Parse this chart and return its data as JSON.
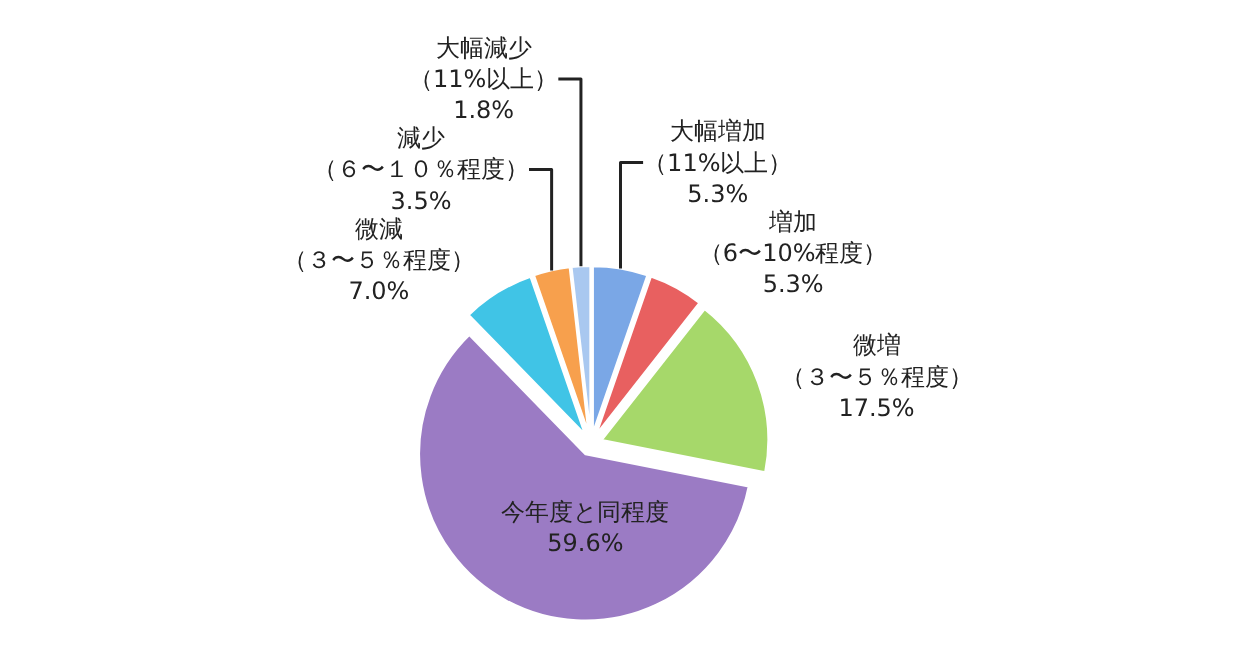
{
  "chart_data": {
    "type": "pie",
    "categories": [
      "大幅増加（11%以上）",
      "増加（6〜10%程度）",
      "微増（３〜５％程度）",
      "今年度と同程度",
      "微減（３〜５％程度）",
      "減少（６〜１０％程度）",
      "大幅減少（11%以上）"
    ],
    "values": [
      5.3,
      5.3,
      17.5,
      59.6,
      7.0,
      3.5,
      1.8
    ],
    "colors": [
      "#7aa7e6",
      "#e86060",
      "#a6d86a",
      "#9b7bc4",
      "#40c4e6",
      "#f7a04d",
      "#a9c8f0"
    ],
    "value_labels": [
      "5.3%",
      "5.3%",
      "17.5%",
      "59.6%",
      "7.0%",
      "3.5%",
      "1.8%"
    ],
    "legend": false
  }
}
